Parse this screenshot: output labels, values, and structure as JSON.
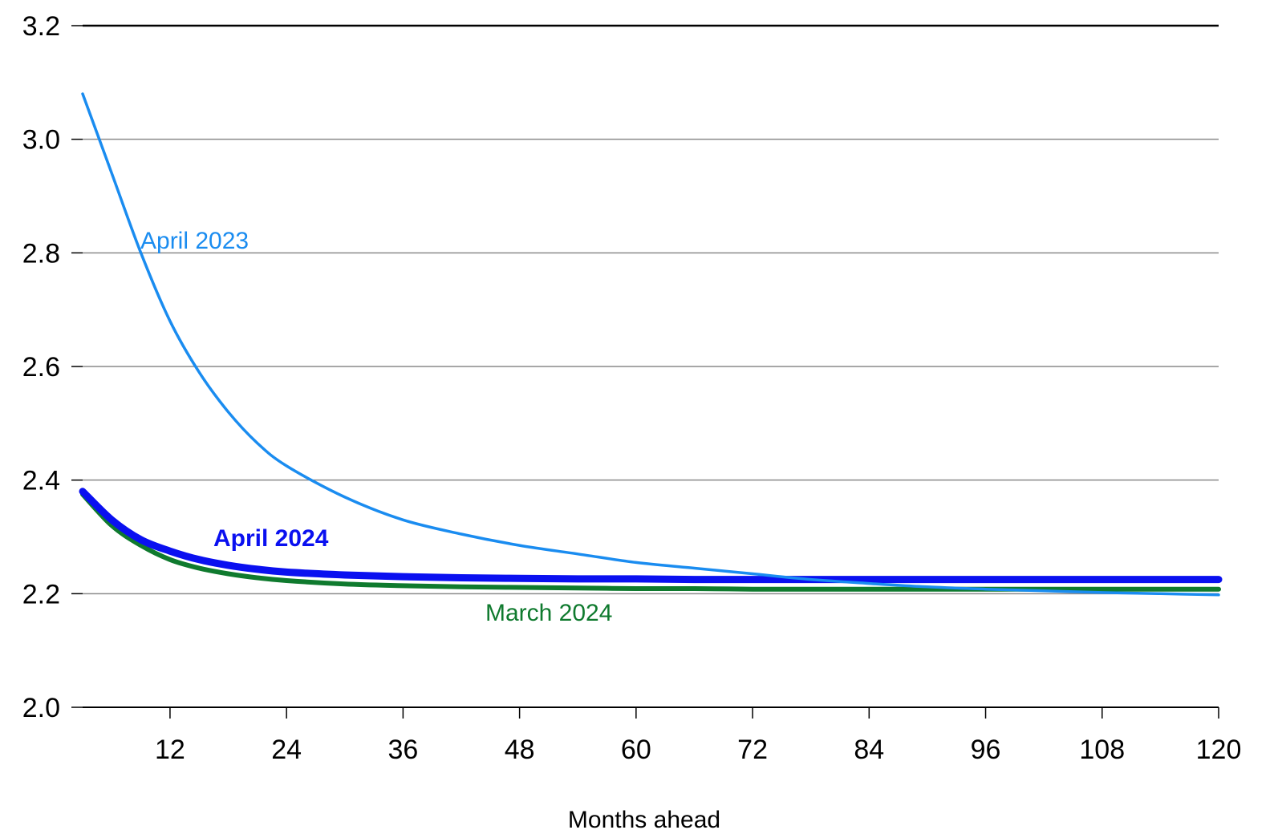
{
  "chart_data": {
    "type": "line",
    "title": "",
    "xlabel": "Months ahead",
    "ylabel": "",
    "xlim": [
      3,
      120
    ],
    "ylim": [
      2.0,
      3.2
    ],
    "x_ticks": [
      12,
      24,
      36,
      48,
      60,
      72,
      84,
      96,
      108,
      120
    ],
    "x_tick_labels": [
      "12",
      "24",
      "36",
      "48",
      "60",
      "72",
      "84",
      "96",
      "108",
      "120"
    ],
    "y_ticks": [
      2.0,
      2.2,
      2.4,
      2.6,
      2.8,
      3.0,
      3.2
    ],
    "y_tick_labels": [
      "2.0",
      "2.2",
      "2.4",
      "2.6",
      "2.8",
      "3.0",
      "3.2"
    ],
    "grid": true,
    "x": [
      3,
      6,
      9,
      12,
      15,
      18,
      21,
      24,
      30,
      36,
      42,
      48,
      54,
      60,
      66,
      72,
      78,
      84,
      90,
      96,
      102,
      108,
      114,
      120
    ],
    "series": [
      {
        "name": "April 2023",
        "color": "#1a8cf0",
        "label_weight": "normal",
        "values": [
          3.08,
          2.94,
          2.8,
          2.68,
          2.59,
          2.52,
          2.465,
          2.425,
          2.37,
          2.33,
          2.305,
          2.285,
          2.27,
          2.255,
          2.245,
          2.235,
          2.225,
          2.218,
          2.212,
          2.208,
          2.205,
          2.202,
          2.2,
          2.198
        ]
      },
      {
        "name": "April 2024",
        "color": "#0a10f0",
        "label_weight": "bold",
        "values": [
          2.38,
          2.33,
          2.295,
          2.275,
          2.26,
          2.25,
          2.243,
          2.238,
          2.233,
          2.23,
          2.228,
          2.227,
          2.226,
          2.226,
          2.225,
          2.225,
          2.225,
          2.225,
          2.225,
          2.225,
          2.225,
          2.225,
          2.225,
          2.225
        ]
      },
      {
        "name": "March 2024",
        "color": "#0f7a2e",
        "label_weight": "normal",
        "values": [
          2.375,
          2.32,
          2.285,
          2.26,
          2.245,
          2.235,
          2.228,
          2.223,
          2.217,
          2.214,
          2.212,
          2.211,
          2.21,
          2.209,
          2.209,
          2.208,
          2.208,
          2.208,
          2.208,
          2.208,
          2.208,
          2.208,
          2.208,
          2.208
        ]
      }
    ]
  }
}
